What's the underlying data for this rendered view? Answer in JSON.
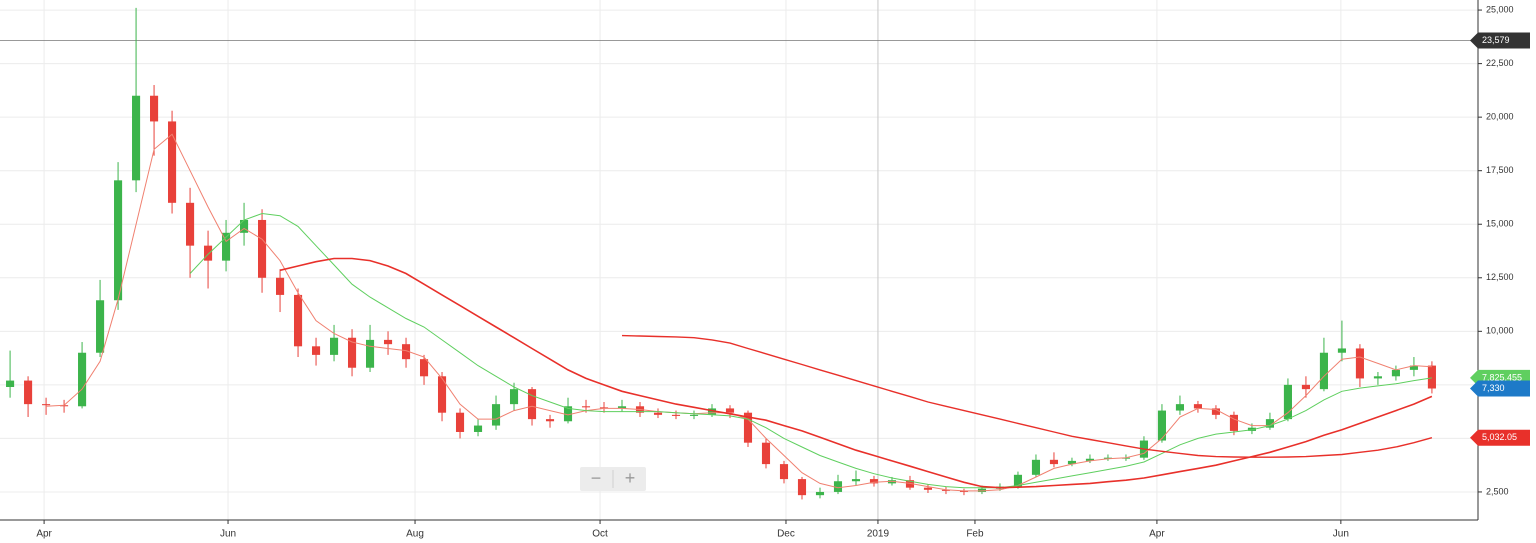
{
  "chart_data": {
    "type": "candlestick",
    "open": [
      7400,
      7700,
      6600,
      6550,
      6500,
      9000,
      11450,
      17050,
      21000,
      19800,
      16000,
      14000,
      13300,
      14600,
      15200,
      12500,
      11700,
      9300,
      8900,
      9700,
      8300,
      9600,
      9400,
      8700,
      7900,
      6200,
      5300,
      5600,
      6600,
      7300,
      5900,
      5800,
      6500,
      6450,
      6400,
      6500,
      6200,
      6100,
      6050,
      6100,
      6400,
      6200,
      4800,
      3800,
      3100,
      2350,
      2500,
      3000,
      3100,
      2900,
      3050,
      2700,
      2600,
      2550,
      2500,
      2650,
      2750,
      3300,
      4000,
      3800,
      3950,
      4050,
      4100,
      4100,
      4900,
      6300,
      6600,
      6400,
      6100,
      5350,
      5500,
      5900,
      7500,
      7300,
      9000,
      9200,
      7800,
      7900,
      8200,
      8400
    ],
    "high": [
      9100,
      7900,
      6900,
      6800,
      9500,
      12400,
      17900,
      25100,
      21500,
      20300,
      16700,
      14700,
      15200,
      16000,
      15700,
      12900,
      12000,
      9700,
      10300,
      10100,
      10300,
      10000,
      9700,
      8900,
      8100,
      6400,
      5900,
      7000,
      7600,
      7400,
      6100,
      6900,
      6800,
      6700,
      6800,
      6700,
      6400,
      6300,
      6300,
      6600,
      6550,
      6300,
      5000,
      3950,
      3200,
      2700,
      3300,
      3500,
      3250,
      3200,
      3250,
      2850,
      2750,
      2650,
      2800,
      2900,
      3450,
      4250,
      4350,
      4100,
      4250,
      4250,
      4250,
      5100,
      6600,
      7000,
      6750,
      6550,
      6250,
      5700,
      6200,
      7800,
      7900,
      9700,
      10500,
      9400,
      8100,
      8400,
      8800,
      8600
    ],
    "low": [
      6900,
      6000,
      6100,
      6200,
      6400,
      8800,
      11000,
      16500,
      18200,
      15500,
      12500,
      12000,
      12800,
      14000,
      11800,
      10900,
      8800,
      8400,
      8600,
      7900,
      8100,
      8900,
      8300,
      7500,
      5800,
      5000,
      5100,
      5400,
      6300,
      5600,
      5500,
      5700,
      6200,
      6200,
      6250,
      6000,
      5950,
      5900,
      5900,
      6000,
      5950,
      4600,
      3600,
      2900,
      2150,
      2200,
      2400,
      2800,
      2750,
      2800,
      2600,
      2450,
      2400,
      2350,
      2400,
      2550,
      2650,
      3200,
      3650,
      3700,
      3850,
      3950,
      3950,
      4000,
      4800,
      6100,
      6200,
      5900,
      5150,
      5200,
      5400,
      5800,
      6900,
      7200,
      8600,
      7400,
      7500,
      7700,
      7900,
      7100
    ],
    "close": [
      7700,
      6600,
      6550,
      6500,
      9000,
      11450,
      17050,
      21000,
      19800,
      16000,
      14000,
      13300,
      14600,
      15200,
      12500,
      11700,
      9300,
      8900,
      9700,
      8300,
      9600,
      9400,
      8700,
      7900,
      6200,
      5300,
      5600,
      6600,
      7300,
      5900,
      5800,
      6500,
      6450,
      6400,
      6500,
      6200,
      6100,
      6050,
      6100,
      6400,
      6200,
      4800,
      3800,
      3100,
      2350,
      2500,
      3000,
      3100,
      2900,
      3050,
      2700,
      2600,
      2550,
      2500,
      2650,
      2750,
      3300,
      4000,
      3800,
      3950,
      4050,
      4100,
      4100,
      4900,
      6300,
      6600,
      6400,
      6100,
      5350,
      5500,
      5900,
      7500,
      7300,
      9000,
      9200,
      7800,
      7900,
      8200,
      8400,
      7330
    ],
    "up_color": "#3cb44b",
    "down_color": "#e8413a",
    "series": [
      {
        "color": "#f08070",
        "width": 1,
        "values": [
          null,
          null,
          6500,
          6550,
          7300,
          8600,
          11500,
          15000,
          18500,
          19200,
          17500,
          15800,
          14200,
          14800,
          14300,
          13300,
          11800,
          10500,
          9900,
          9500,
          9300,
          9200,
          9100,
          8800,
          7800,
          6600,
          5900,
          5900,
          6300,
          6500,
          6300,
          6100,
          6300,
          6400,
          6400,
          6350,
          6250,
          6200,
          6150,
          6200,
          6200,
          5900,
          5000,
          4200,
          3400,
          2900,
          2700,
          2800,
          2950,
          3000,
          2900,
          2750,
          2600,
          2550,
          2550,
          2600,
          2800,
          3200,
          3600,
          3800,
          3950,
          4050,
          4100,
          4300,
          5000,
          6000,
          6400,
          6350,
          5900,
          5600,
          5600,
          6200,
          7000,
          7900,
          8700,
          8800,
          8500,
          8200,
          8400,
          8350
        ]
      },
      {
        "color": "#5fcf5f",
        "width": 1,
        "end_label": {
          "value": 7825.455,
          "label": "7,825.455"
        },
        "values": [
          null,
          null,
          null,
          null,
          null,
          null,
          null,
          null,
          null,
          null,
          12700,
          13600,
          14400,
          15200,
          15500,
          15400,
          14900,
          14000,
          13100,
          12200,
          11600,
          11100,
          10600,
          10200,
          9600,
          9000,
          8400,
          7900,
          7400,
          7000,
          6700,
          6400,
          6300,
          6250,
          6250,
          6250,
          6250,
          6200,
          6150,
          6100,
          6050,
          5900,
          5500,
          5000,
          4600,
          4200,
          3900,
          3600,
          3350,
          3150,
          3000,
          2850,
          2750,
          2700,
          2700,
          2700,
          2800,
          2950,
          3100,
          3250,
          3400,
          3550,
          3700,
          3900,
          4300,
          4700,
          5000,
          5200,
          5300,
          5400,
          5600,
          5900,
          6300,
          6800,
          7200,
          7350,
          7450,
          7550,
          7700,
          7825.455
        ]
      },
      {
        "color": "#e8302a",
        "width": 1.6,
        "values": [
          null,
          null,
          null,
          null,
          null,
          null,
          null,
          null,
          null,
          null,
          null,
          null,
          null,
          null,
          null,
          12850,
          13050,
          13250,
          13400,
          13400,
          13300,
          13050,
          12700,
          12200,
          11700,
          11200,
          10700,
          10200,
          9700,
          9200,
          8700,
          8200,
          7800,
          7500,
          7200,
          7000,
          6800,
          6600,
          6450,
          6300,
          6150,
          6000,
          5850,
          5600,
          5350,
          5050,
          4750,
          4450,
          4200,
          3950,
          3700,
          3450,
          3200,
          2950,
          2750,
          2700,
          2720,
          2750,
          2800,
          2850,
          2900,
          2980,
          3050,
          3150,
          3300,
          3450,
          3600,
          3750,
          3950,
          4150,
          4350,
          4600,
          4850,
          5150,
          5400,
          5700,
          6000,
          6300,
          6600,
          6960
        ]
      },
      {
        "color": "#e8302a",
        "width": 1.4,
        "end_label": {
          "value": 5032.05,
          "label": "5,032.05"
        },
        "values": [
          null,
          null,
          null,
          null,
          null,
          null,
          null,
          null,
          null,
          null,
          null,
          null,
          null,
          null,
          null,
          null,
          null,
          null,
          null,
          null,
          null,
          null,
          null,
          null,
          null,
          null,
          null,
          null,
          null,
          null,
          null,
          null,
          null,
          null,
          9800,
          9780,
          9760,
          9740,
          9700,
          9600,
          9450,
          9200,
          8950,
          8700,
          8450,
          8200,
          7950,
          7700,
          7450,
          7200,
          6950,
          6700,
          6500,
          6300,
          6100,
          5900,
          5700,
          5500,
          5300,
          5100,
          4950,
          4800,
          4650,
          4500,
          4400,
          4300,
          4200,
          4150,
          4130,
          4120,
          4120,
          4130,
          4150,
          4200,
          4250,
          4350,
          4450,
          4600,
          4800,
          5032.05
        ]
      }
    ],
    "last_price": {
      "value": 7330,
      "label": "7,330",
      "color": "#1e7ac8"
    },
    "crosshair": {
      "value": 23579,
      "label": "23,579"
    },
    "xlim": [
      -0.56,
      81.56
    ],
    "xticks": [
      {
        "value": 1.89,
        "label": "Apr"
      },
      {
        "value": 12.11,
        "label": "Jun"
      },
      {
        "value": 22.5,
        "label": "Aug"
      },
      {
        "value": 32.78,
        "label": "Oct"
      },
      {
        "value": 43.11,
        "label": "Dec"
      },
      {
        "value": 48.22,
        "label": "2019"
      },
      {
        "value": 53.61,
        "label": "Feb"
      },
      {
        "value": 63.72,
        "label": "Apr"
      },
      {
        "value": 73.94,
        "label": "Jun"
      }
    ],
    "ylim": [
      1190,
      25470
    ],
    "yticks": [
      {
        "value": 2500,
        "label": "2,500"
      },
      {
        "value": 5000,
        "label": "5,000"
      },
      {
        "value": 7500,
        "label": "7,500"
      },
      {
        "value": 10000,
        "label": "10,000"
      },
      {
        "value": 12500,
        "label": "12,500"
      },
      {
        "value": 15000,
        "label": "15,000"
      },
      {
        "value": 17500,
        "label": "17,500"
      },
      {
        "value": 20000,
        "label": "20,000"
      },
      {
        "value": 22500,
        "label": "22,500"
      },
      {
        "value": 25000,
        "label": "25,000"
      }
    ],
    "grid": true
  },
  "controls": {
    "zoom_out": "−",
    "zoom_in": "+"
  }
}
